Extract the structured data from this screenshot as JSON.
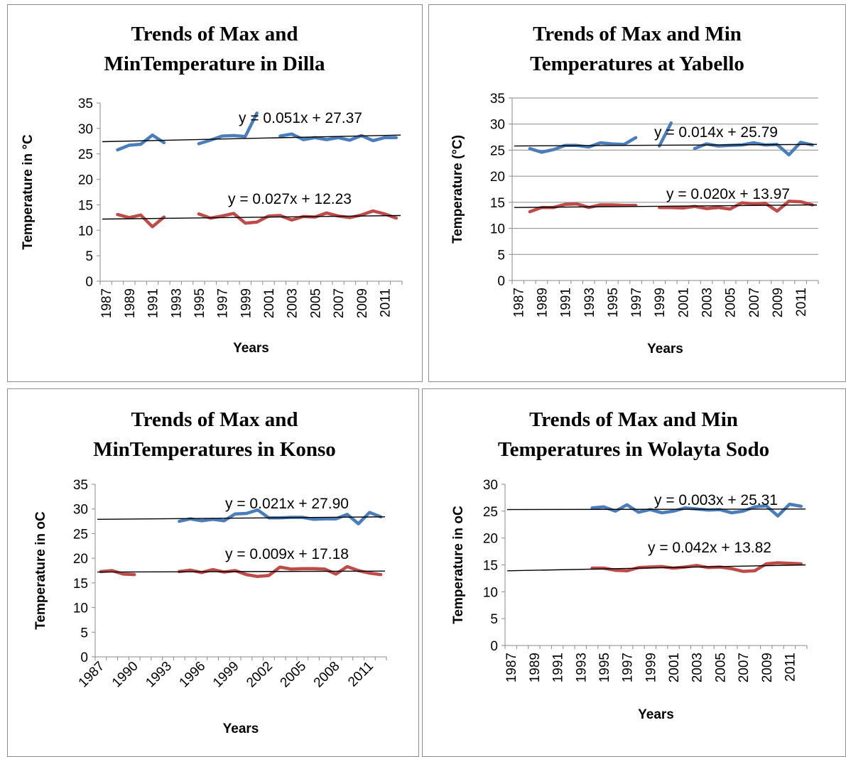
{
  "chart_data": [
    {
      "type": "line",
      "title_lines": [
        "Trends of Max and",
        "MinTemperature in Dilla"
      ],
      "xlabel": "Years",
      "ylabel": "Temperature in °C",
      "ylim": [
        0,
        35
      ],
      "yticks": [
        0,
        5,
        10,
        15,
        20,
        25,
        30,
        35
      ],
      "xrange": [
        1987,
        2012
      ],
      "xticks": [
        "1987",
        "1989",
        "1991",
        "1993",
        "1995",
        "1997",
        "1999",
        "2001",
        "2003",
        "2005",
        "2007",
        "2009",
        "2011"
      ],
      "xtick_rotation": -90,
      "grid": false,
      "trendlines": [
        {
          "label": "y = 0.051x + 27.37",
          "y_start": 27.4,
          "y_end": 28.7
        },
        {
          "label": "y = 0.027x + 12.23",
          "y_start": 12.2,
          "y_end": 12.9
        }
      ],
      "series": [
        {
          "color": "#4a7ebb",
          "x": [
            1988,
            1989,
            1990,
            1991,
            1992,
            1993,
            1994,
            1995,
            1996,
            1997,
            1998,
            1999,
            2000,
            2001,
            2002,
            2003,
            2004,
            2005,
            2006,
            2007,
            2008,
            2009,
            2010,
            2011,
            2012
          ],
          "values": [
            25.8,
            26.7,
            26.9,
            28.7,
            27.2,
            null,
            null,
            27.0,
            27.7,
            28.5,
            28.6,
            28.4,
            33.0,
            null,
            28.5,
            28.9,
            27.8,
            28.2,
            27.8,
            28.2,
            27.7,
            28.6,
            27.6,
            28.2,
            28.2
          ]
        },
        {
          "color": "#be4b48",
          "x": [
            1988,
            1989,
            1990,
            1991,
            1992,
            1993,
            1994,
            1995,
            1996,
            1997,
            1998,
            1999,
            2000,
            2001,
            2002,
            2003,
            2004,
            2005,
            2006,
            2007,
            2008,
            2009,
            2010,
            2011,
            2012
          ],
          "values": [
            13.1,
            12.5,
            13.0,
            10.7,
            12.6,
            null,
            null,
            13.2,
            12.4,
            12.8,
            13.3,
            11.4,
            11.6,
            12.8,
            12.9,
            12.0,
            12.7,
            12.6,
            13.4,
            12.8,
            12.5,
            13.0,
            13.8,
            13.2,
            12.4
          ]
        }
      ]
    },
    {
      "type": "line",
      "title_lines": [
        "Trends of Max and Min",
        "Temperatures at Yabello"
      ],
      "xlabel": "Years",
      "ylabel": "Temperature (°C)",
      "ylim": [
        0,
        35
      ],
      "yticks": [
        0,
        5,
        10,
        15,
        20,
        25,
        30,
        35
      ],
      "xrange": [
        1987,
        2012
      ],
      "xticks": [
        "1987",
        "1989",
        "1991",
        "1993",
        "1995",
        "1997",
        "1999",
        "2001",
        "2003",
        "2005",
        "2007",
        "2009",
        "2011"
      ],
      "xtick_rotation": -90,
      "grid": true,
      "trendlines": [
        {
          "label": "y = 0.014x + 25.79",
          "y_start": 25.8,
          "y_end": 26.1
        },
        {
          "label": "y = 0.020x + 13.97",
          "y_start": 14.0,
          "y_end": 14.5
        }
      ],
      "series": [
        {
          "color": "#4a7ebb",
          "x": [
            1988,
            1989,
            1990,
            1991,
            1992,
            1993,
            1994,
            1995,
            1996,
            1997,
            1998,
            1999,
            2000,
            2001,
            2002,
            2003,
            2004,
            2005,
            2006,
            2007,
            2008,
            2009,
            2010,
            2011,
            2012
          ],
          "values": [
            25.3,
            24.6,
            25.1,
            25.9,
            25.9,
            25.6,
            26.4,
            26.2,
            26.1,
            27.4,
            null,
            25.8,
            30.2,
            null,
            25.3,
            26.2,
            25.8,
            25.9,
            26.0,
            26.4,
            26.0,
            26.1,
            24.1,
            26.5,
            26.0
          ]
        },
        {
          "color": "#be4b48",
          "x": [
            1988,
            1989,
            1990,
            1991,
            1992,
            1993,
            1994,
            1995,
            1996,
            1997,
            1998,
            1999,
            2000,
            2001,
            2002,
            2003,
            2004,
            2005,
            2006,
            2007,
            2008,
            2009,
            2010,
            2011,
            2012
          ],
          "values": [
            13.2,
            14.0,
            14.0,
            14.6,
            14.7,
            14.0,
            14.5,
            14.5,
            14.4,
            14.4,
            null,
            14.0,
            14.0,
            13.9,
            14.2,
            13.8,
            14.0,
            13.7,
            14.9,
            14.7,
            14.8,
            13.3,
            15.2,
            15.1,
            14.5
          ]
        }
      ]
    },
    {
      "type": "line",
      "title_lines": [
        "Trends of Max and",
        "MinTemperatures in Konso"
      ],
      "xlabel": "Years",
      "ylabel": "Temperature in oC",
      "ylim": [
        0,
        35
      ],
      "yticks": [
        0,
        5,
        10,
        15,
        20,
        25,
        30,
        35
      ],
      "xrange": [
        1987,
        2012
      ],
      "xticks": [
        "1987",
        "1990",
        "1993",
        "1996",
        "1999",
        "2002",
        "2005",
        "2008",
        "2011"
      ],
      "xtick_rotation": -45,
      "grid": false,
      "trendlines": [
        {
          "label": "y = 0.021x + 27.90",
          "y_start": 27.9,
          "y_end": 28.4
        },
        {
          "label": "y = 0.009x + 17.18",
          "y_start": 17.2,
          "y_end": 17.4
        }
      ],
      "series": [
        {
          "color": "#4a7ebb",
          "x": [
            1994,
            1995,
            1996,
            1997,
            1998,
            1999,
            2000,
            2001,
            2002,
            2003,
            2004,
            2005,
            2006,
            2007,
            2008,
            2009,
            2010,
            2011,
            2012
          ],
          "values": [
            27.5,
            28.0,
            27.6,
            27.9,
            27.6,
            29.0,
            29.1,
            29.8,
            28.2,
            28.2,
            28.3,
            28.3,
            27.9,
            28.0,
            28.0,
            28.9,
            27.0,
            29.3,
            28.4
          ]
        },
        {
          "color": "#be4b48",
          "x": [
            1987,
            1988,
            1989,
            1990,
            1991,
            1992,
            1993,
            1994,
            1995,
            1996,
            1997,
            1998,
            1999,
            2000,
            2001,
            2002,
            2003,
            2004,
            2005,
            2006,
            2007,
            2008,
            2009,
            2010,
            2011,
            2012
          ],
          "values": [
            17.3,
            17.5,
            16.8,
            16.7,
            null,
            null,
            null,
            17.3,
            17.6,
            17.1,
            17.7,
            17.2,
            17.5,
            16.7,
            16.3,
            16.5,
            18.2,
            17.8,
            17.9,
            17.9,
            17.8,
            16.8,
            18.3,
            17.5,
            17.0,
            16.7
          ]
        }
      ]
    },
    {
      "type": "line",
      "title_lines": [
        "Trends of Max and Min",
        "Temperatures in Wolayta Sodo"
      ],
      "xlabel": "Years",
      "ylabel": "Temperature in oC",
      "ylim": [
        0,
        30
      ],
      "yticks": [
        0,
        5,
        10,
        15,
        20,
        25,
        30
      ],
      "xrange": [
        1987,
        2012
      ],
      "xticks": [
        "1987",
        "1989",
        "1991",
        "1993",
        "1995",
        "1997",
        "1999",
        "2001",
        "2003",
        "2005",
        "2007",
        "2009",
        "2011"
      ],
      "xtick_rotation": -90,
      "grid": false,
      "trendlines": [
        {
          "label": "y = 0.003x + 25.31",
          "y_start": 25.3,
          "y_end": 25.4
        },
        {
          "label": "y = 0.042x + 13.82",
          "y_start": 13.9,
          "y_end": 15.0
        }
      ],
      "series": [
        {
          "color": "#4a7ebb",
          "x": [
            1994,
            1995,
            1996,
            1997,
            1998,
            1999,
            2000,
            2001,
            2002,
            2003,
            2004,
            2005,
            2006,
            2007,
            2008,
            2009,
            2010,
            2011,
            2012
          ],
          "values": [
            25.6,
            25.8,
            25.0,
            26.2,
            24.8,
            25.3,
            24.7,
            25.0,
            25.6,
            25.4,
            25.2,
            25.3,
            24.7,
            25.0,
            25.8,
            26.0,
            24.1,
            26.3,
            25.9
          ]
        },
        {
          "color": "#be4b48",
          "x": [
            1994,
            1995,
            1996,
            1997,
            1998,
            1999,
            2000,
            2001,
            2002,
            2003,
            2004,
            2005,
            2006,
            2007,
            2008,
            2009,
            2010,
            2011,
            2012
          ],
          "values": [
            14.4,
            14.4,
            14.0,
            13.9,
            14.5,
            14.6,
            14.7,
            14.4,
            14.6,
            14.9,
            14.5,
            14.6,
            14.3,
            13.8,
            13.9,
            15.2,
            15.4,
            15.3,
            15.2
          ]
        }
      ]
    }
  ]
}
